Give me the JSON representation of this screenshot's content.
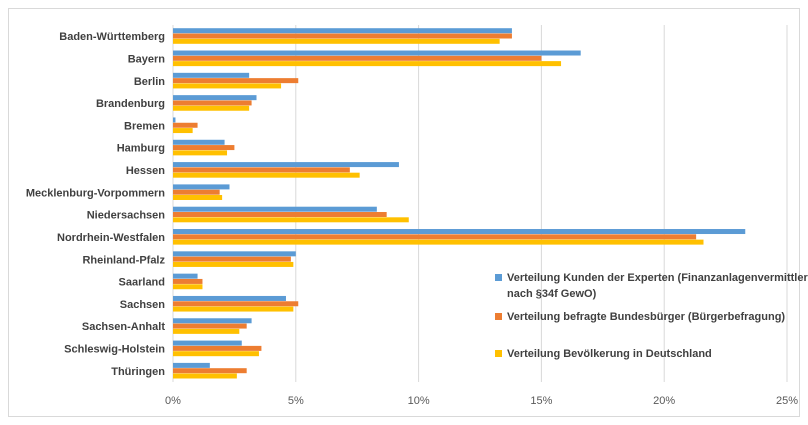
{
  "chart_data": {
    "type": "bar",
    "orientation": "horizontal",
    "categories": [
      "Baden-Württemberg",
      "Bayern",
      "Berlin",
      "Brandenburg",
      "Bremen",
      "Hamburg",
      "Hessen",
      "Mecklenburg-Vorpommern",
      "Niedersachsen",
      "Nordrhein-Westfalen",
      "Rheinland-Pfalz",
      "Saarland",
      "Sachsen",
      "Sachsen-Anhalt",
      "Schleswig-Holstein",
      "Thüringen"
    ],
    "series": [
      {
        "name": "Verteilung Kunden der Experten (Finanzanlagenvermittler nach §34f GewO)",
        "name_lines": [
          "Verteilung Kunden der Experten (Finanzanlagenvermittler",
          "nach §34f GewO)"
        ],
        "color": "#5B9BD5",
        "values": [
          13.8,
          16.6,
          3.1,
          3.4,
          0.1,
          2.1,
          9.2,
          2.3,
          8.3,
          23.3,
          5.0,
          1.0,
          4.6,
          3.2,
          2.8,
          1.5
        ]
      },
      {
        "name": "Verteilung befragte Bundesbürger (Bürgerbefragung)",
        "name_lines": [
          "Verteilung befragte Bundesbürger (Bürgerbefragung)"
        ],
        "color": "#ED7D31",
        "values": [
          13.8,
          15.0,
          5.1,
          3.2,
          1.0,
          2.5,
          7.2,
          1.9,
          8.7,
          21.3,
          4.8,
          1.2,
          5.1,
          3.0,
          3.6,
          3.0
        ]
      },
      {
        "name": "Verteilung Bevölkerung in Deutschland",
        "name_lines": [
          "Verteilung Bevölkerung in Deutschland"
        ],
        "color": "#FFC000",
        "values": [
          13.3,
          15.8,
          4.4,
          3.1,
          0.8,
          2.2,
          7.6,
          2.0,
          9.6,
          21.6,
          4.9,
          1.2,
          4.9,
          2.7,
          3.5,
          2.6
        ]
      }
    ],
    "xlim": [
      0,
      25
    ],
    "xticks": [
      "0%",
      "5%",
      "10%",
      "15%",
      "20%",
      "25%"
    ],
    "xlabel": "",
    "ylabel": "",
    "title": "",
    "grid": "vertical",
    "legend_position": "right-bottom"
  }
}
